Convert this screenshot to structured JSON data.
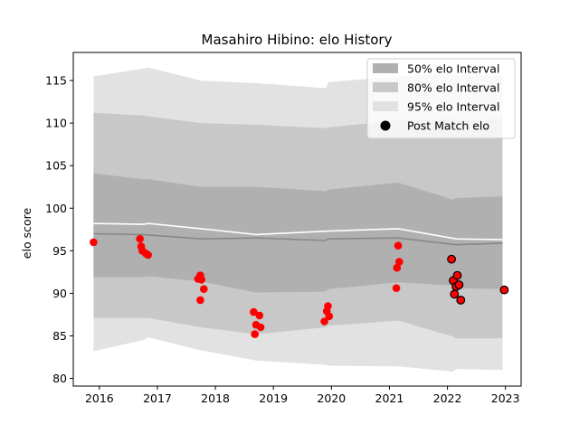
{
  "chart_data": {
    "type": "line",
    "title": "Masahiro Hibino: elo History",
    "xlabel": "",
    "ylabel": "elo score",
    "xlim": [
      2015.55,
      2023.27
    ],
    "ylim": [
      79.1,
      118.3
    ],
    "x_ticks": [
      2016,
      2017,
      2018,
      2019,
      2020,
      2021,
      2022,
      2023
    ],
    "y_ticks": [
      80,
      85,
      90,
      95,
      100,
      105,
      110,
      115
    ],
    "grid": false,
    "legend_position": "top-right",
    "legend": [
      {
        "label": "50% elo Interval",
        "kind": "band",
        "color": "#b0b0b0"
      },
      {
        "label": "80% elo Interval",
        "kind": "band",
        "color": "#c8c8c8"
      },
      {
        "label": "95% elo Interval",
        "kind": "band",
        "color": "#e2e2e2"
      },
      {
        "label": "Post Match elo",
        "kind": "marker",
        "color": "#000000"
      }
    ],
    "bands": [
      {
        "name": "95% elo Interval",
        "color": "#e2e2e2",
        "x": [
          2015.9,
          2016.75,
          2016.85,
          2017.75,
          2018.7,
          2019.9,
          2019.95,
          2021.15,
          2022.1,
          2022.15,
          2022.95
        ],
        "upper": [
          115.5,
          116.4,
          116.5,
          115.0,
          114.7,
          114.1,
          114.8,
          115.5,
          115.8,
          115.6,
          115.6
        ],
        "lower": [
          83.2,
          84.5,
          84.8,
          83.3,
          82.1,
          81.6,
          81.5,
          81.4,
          80.8,
          81.1,
          81.0
        ]
      },
      {
        "name": "80% elo Interval",
        "color": "#c8c8c8",
        "x": [
          2015.9,
          2016.75,
          2016.85,
          2017.75,
          2018.7,
          2019.9,
          2019.95,
          2021.15,
          2022.1,
          2022.15,
          2022.95
        ],
        "upper": [
          111.2,
          110.9,
          110.8,
          110.0,
          109.8,
          109.4,
          109.5,
          110.3,
          110.5,
          110.3,
          110.5
        ],
        "lower": [
          87.1,
          87.1,
          87.1,
          86.0,
          85.2,
          86.0,
          86.2,
          86.8,
          84.9,
          84.7,
          84.7
        ]
      },
      {
        "name": "50% elo Interval",
        "color": "#b0b0b0",
        "x": [
          2015.9,
          2016.75,
          2016.85,
          2017.75,
          2018.7,
          2019.9,
          2019.95,
          2021.15,
          2022.1,
          2022.15,
          2022.95
        ],
        "upper": [
          104.1,
          103.4,
          103.4,
          102.5,
          102.5,
          102.0,
          102.2,
          103.0,
          101.0,
          101.2,
          101.4
        ],
        "lower": [
          91.9,
          91.9,
          92.0,
          91.4,
          90.1,
          90.2,
          90.5,
          91.3,
          90.9,
          90.6,
          90.5
        ]
      }
    ],
    "series": [
      {
        "kind": "line",
        "color": "#ffffff",
        "x": [
          2015.9,
          2016.75,
          2016.85,
          2017.75,
          2018.7,
          2019.9,
          2021.15,
          2022.15,
          2022.95
        ],
        "values": [
          98.2,
          98.1,
          98.2,
          97.6,
          96.9,
          97.3,
          97.6,
          96.4,
          96.3
        ]
      },
      {
        "kind": "line",
        "color": "#888888",
        "x": [
          2015.9,
          2016.75,
          2017.75,
          2018.7,
          2019.9,
          2019.95,
          2021.15,
          2022.15,
          2022.95
        ],
        "values": [
          97.0,
          96.9,
          96.4,
          96.5,
          96.2,
          96.4,
          96.5,
          95.7,
          95.9
        ]
      },
      {
        "name": "Post Match elo",
        "kind": "scatter",
        "color": "#ff0000",
        "points": [
          {
            "x": 2015.9,
            "y": 96.0,
            "edge": false
          },
          {
            "x": 2016.7,
            "y": 96.4,
            "edge": false
          },
          {
            "x": 2016.72,
            "y": 95.5,
            "edge": false
          },
          {
            "x": 2016.74,
            "y": 95.0,
            "edge": false
          },
          {
            "x": 2016.8,
            "y": 94.7,
            "edge": false
          },
          {
            "x": 2016.84,
            "y": 94.5,
            "edge": false
          },
          {
            "x": 2017.7,
            "y": 91.7,
            "edge": false
          },
          {
            "x": 2017.74,
            "y": 92.1,
            "edge": false
          },
          {
            "x": 2017.76,
            "y": 91.6,
            "edge": false
          },
          {
            "x": 2017.8,
            "y": 90.5,
            "edge": false
          },
          {
            "x": 2017.74,
            "y": 89.2,
            "edge": false
          },
          {
            "x": 2018.66,
            "y": 87.8,
            "edge": false
          },
          {
            "x": 2018.7,
            "y": 86.3,
            "edge": false
          },
          {
            "x": 2018.76,
            "y": 87.4,
            "edge": false
          },
          {
            "x": 2018.78,
            "y": 86.0,
            "edge": false
          },
          {
            "x": 2018.68,
            "y": 85.2,
            "edge": false
          },
          {
            "x": 2019.88,
            "y": 86.7,
            "edge": false
          },
          {
            "x": 2019.92,
            "y": 87.9,
            "edge": false
          },
          {
            "x": 2019.94,
            "y": 88.5,
            "edge": false
          },
          {
            "x": 2019.96,
            "y": 87.3,
            "edge": false
          },
          {
            "x": 2021.12,
            "y": 90.6,
            "edge": false
          },
          {
            "x": 2021.13,
            "y": 93.0,
            "edge": false
          },
          {
            "x": 2021.15,
            "y": 95.6,
            "edge": false
          },
          {
            "x": 2021.17,
            "y": 93.7,
            "edge": false
          },
          {
            "x": 2022.07,
            "y": 94.0,
            "edge": true
          },
          {
            "x": 2022.1,
            "y": 91.5,
            "edge": true
          },
          {
            "x": 2022.12,
            "y": 89.9,
            "edge": true
          },
          {
            "x": 2022.15,
            "y": 90.8,
            "edge": true
          },
          {
            "x": 2022.17,
            "y": 92.1,
            "edge": true
          },
          {
            "x": 2022.2,
            "y": 91.0,
            "edge": true
          },
          {
            "x": 2022.23,
            "y": 89.2,
            "edge": true
          },
          {
            "x": 2022.98,
            "y": 90.4,
            "edge": true
          }
        ]
      }
    ]
  }
}
